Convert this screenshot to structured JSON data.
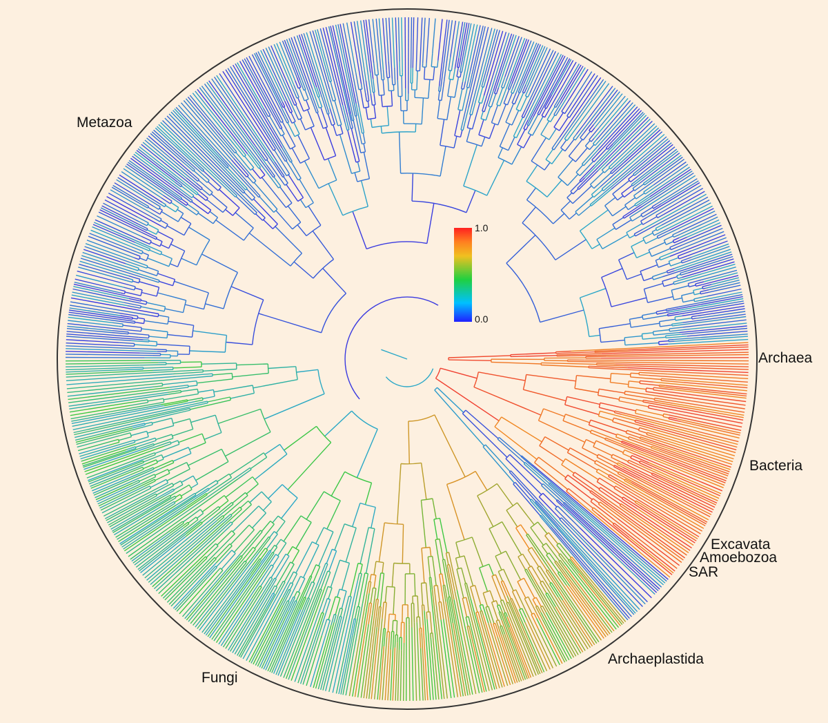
{
  "clades": {
    "metazoa": "Metazoa",
    "archaea": "Archaea",
    "bacteria": "Bacteria",
    "excavata": "Excavata",
    "amoebozoa": "Amoebozoa",
    "sar": "SAR",
    "archaeplastida": "Archaeplastida",
    "fungi": "Fungi"
  },
  "colorbar": {
    "max_label": "1.0",
    "min_label": "0.0",
    "stops": [
      "#2020ff",
      "#00c0ff",
      "#20d040",
      "#f0c020",
      "#ff8020",
      "#ff2020"
    ]
  },
  "colors": {
    "background": "#fdf0e0",
    "outer_ring": "#333333",
    "low": "#3a3ae0",
    "mid_low": "#2aa8c8",
    "mid": "#3cc840",
    "high": "#f08a20",
    "max": "#f04030"
  }
}
